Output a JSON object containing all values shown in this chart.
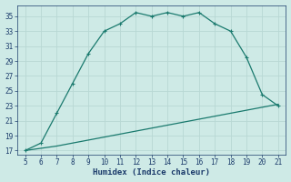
{
  "xlabel": "Humidex (Indice chaleur)",
  "x_main": [
    5,
    6,
    7,
    8,
    9,
    10,
    11,
    12,
    13,
    14,
    15,
    16,
    17,
    18,
    19,
    20,
    21
  ],
  "y_main": [
    17,
    18,
    22,
    26,
    30,
    33,
    34,
    35.5,
    35,
    35.5,
    35,
    35.5,
    34,
    33,
    29.5,
    24.5,
    23
  ],
  "x_base": [
    5,
    6,
    7,
    8,
    9,
    10,
    11,
    12,
    13,
    14,
    15,
    16,
    17,
    18,
    19,
    20,
    21
  ],
  "y_base": [
    17,
    17.3,
    17.6,
    18.0,
    18.4,
    18.8,
    19.2,
    19.6,
    20.0,
    20.4,
    20.8,
    21.2,
    21.6,
    22.0,
    22.4,
    22.8,
    23.2
  ],
  "line_color": "#1a7a6e",
  "bg_color": "#ceeae6",
  "grid_color": "#b8d8d4",
  "text_color": "#1a3a6a",
  "xlim": [
    4.5,
    21.5
  ],
  "ylim": [
    16.5,
    36.5
  ],
  "xticks": [
    5,
    6,
    7,
    8,
    9,
    10,
    11,
    12,
    13,
    14,
    15,
    16,
    17,
    18,
    19,
    20,
    21
  ],
  "yticks": [
    17,
    19,
    21,
    23,
    25,
    27,
    29,
    31,
    33,
    35
  ],
  "markersize": 2.5,
  "linewidth": 0.9
}
